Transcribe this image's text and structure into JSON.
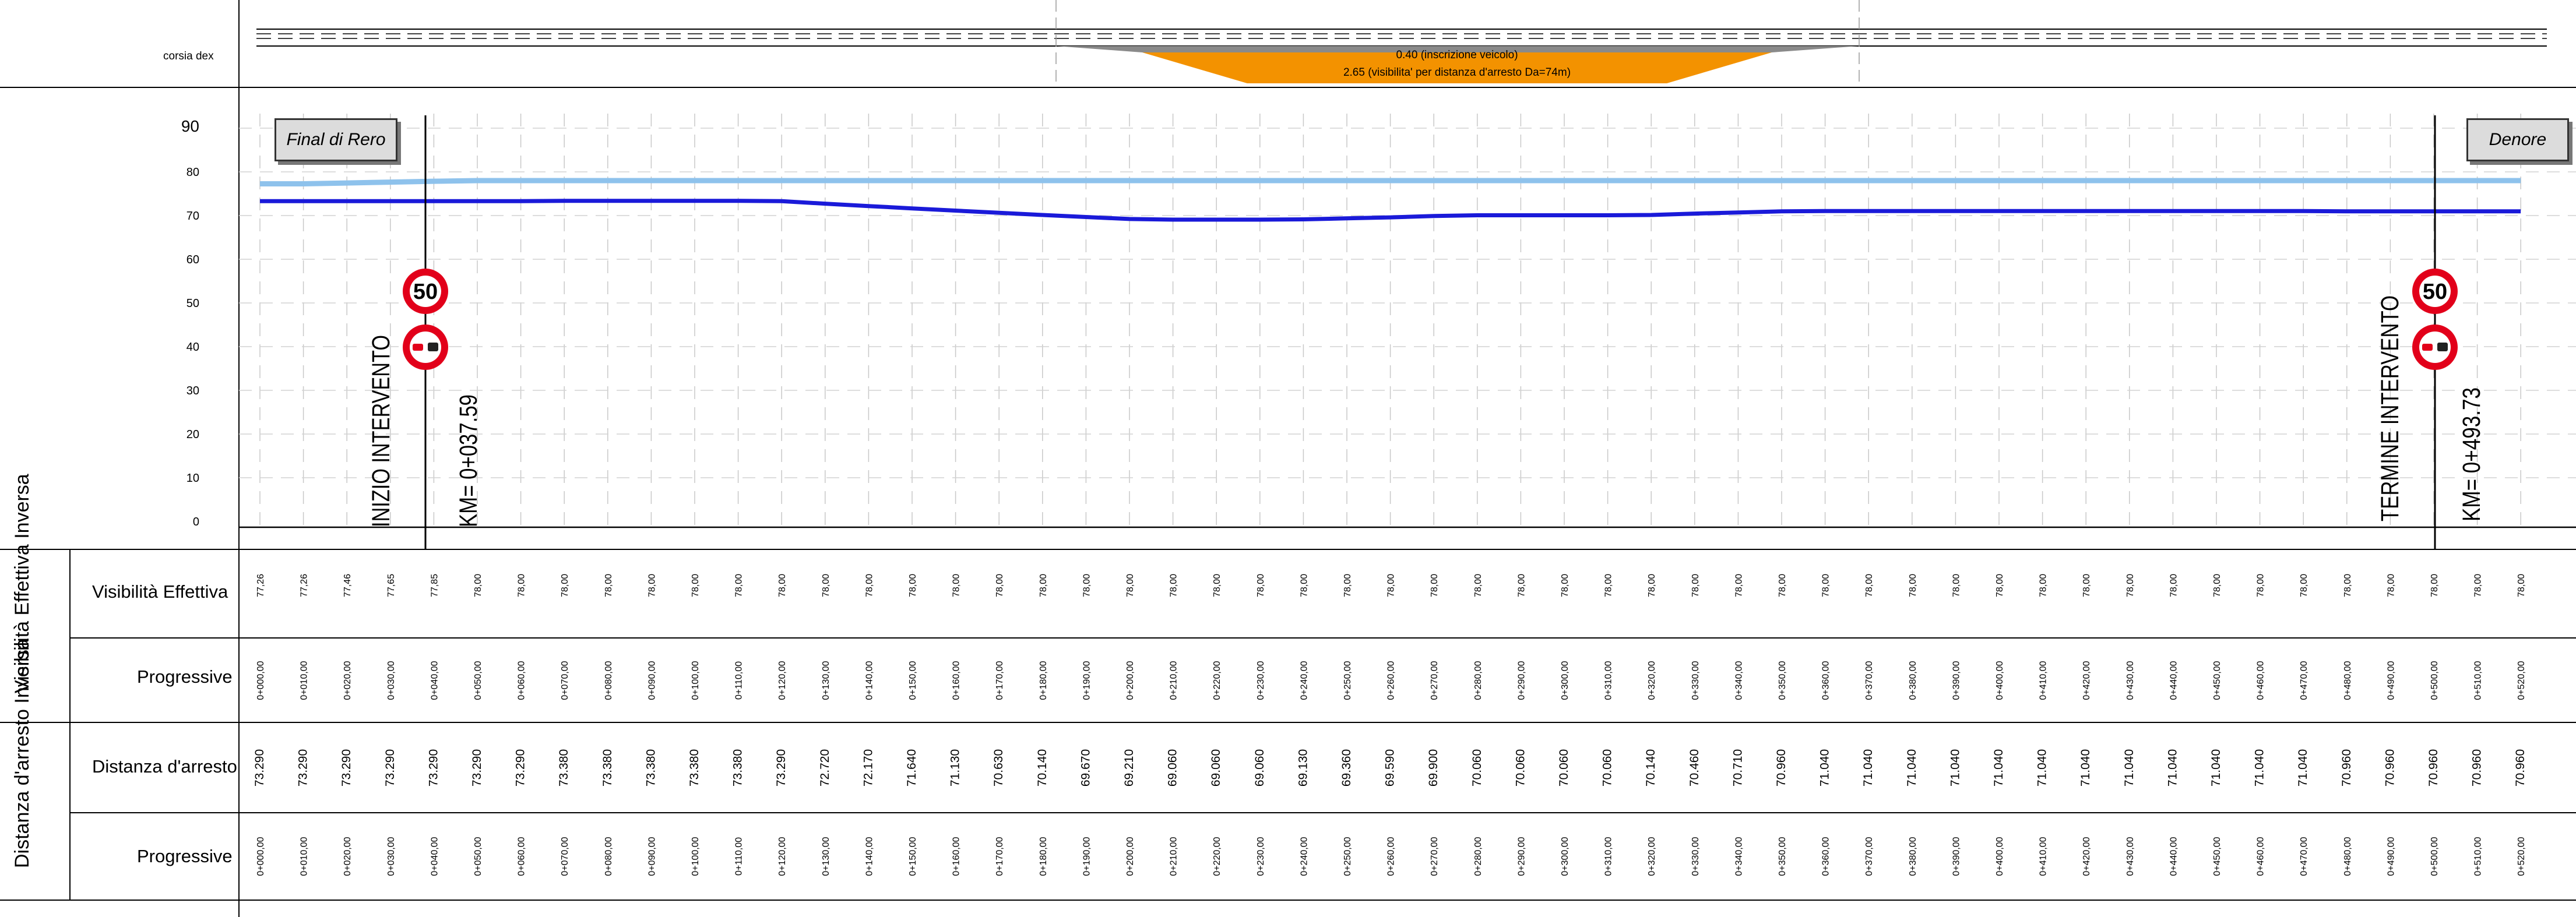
{
  "header": {
    "lane_label": "corsia dex",
    "annot_top": "0.40 (inscrizione veicolo)",
    "annot_bottom": "2.65 (visibilita' per distanza d'arresto Da=74m)"
  },
  "chart": {
    "left_box": "Final di Rero",
    "right_box": "Denore",
    "start_label": "INIZIO INTERVENTO",
    "start_km": "KM= 0+037.59",
    "end_label": "TERMINE INTERVENTO",
    "end_km": "KM= 0+493.73",
    "sign_speed": "50",
    "y_ticks": [
      "0",
      "10",
      "20",
      "30",
      "40",
      "50",
      "60",
      "70",
      "80",
      "90"
    ]
  },
  "colors": {
    "visibility_line": "#1a1ad9",
    "stopping_line": "#8ec2ec",
    "orange_band": "#f39200",
    "grey_band": "#8a8a8a",
    "sign_red": "#e2001a"
  },
  "table": {
    "group1_label": "Visibilità Effettiva Inversa",
    "group2_label": "Distanza d'arresto Inversa",
    "row_vis": "Visibilità Effettiva",
    "row_prog1": "Progressive",
    "row_dist": "Distanza d'arresto",
    "row_prog2": "Progressive"
  },
  "chart_data": {
    "type": "line",
    "title": "",
    "ylim": [
      0,
      90
    ],
    "x_progressive": [
      "0+000,00",
      "0+010,00",
      "0+020,00",
      "0+030,00",
      "0+040,00",
      "0+050,00",
      "0+060,00",
      "0+070,00",
      "0+080,00",
      "0+090,00",
      "0+100,00",
      "0+110,00",
      "0+120,00",
      "0+130,00",
      "0+140,00",
      "0+150,00",
      "0+160,00",
      "0+170,00",
      "0+180,00",
      "0+190,00",
      "0+200,00",
      "0+210,00",
      "0+220,00",
      "0+230,00",
      "0+240,00",
      "0+250,00",
      "0+260,00",
      "0+270,00",
      "0+280,00",
      "0+290,00",
      "0+300,00",
      "0+310,00",
      "0+320,00",
      "0+330,00",
      "0+340,00",
      "0+350,00",
      "0+360,00",
      "0+370,00",
      "0+380,00",
      "0+390,00",
      "0+400,00",
      "0+410,00",
      "0+420,00",
      "0+430,00",
      "0+440,00",
      "0+450,00",
      "0+460,00",
      "0+470,00",
      "0+480,00",
      "0+490,00",
      "0+500,00",
      "0+510,00",
      "0+520,00"
    ],
    "visibilita_effettiva": [
      "77,26",
      "77,26",
      "77,46",
      "77,65",
      "77,85",
      "78,00",
      "78,00",
      "78,00",
      "78,00",
      "78,00",
      "78,00",
      "78,00",
      "78,00",
      "78,00",
      "78,00",
      "78,00",
      "78,00",
      "78,00",
      "78,00",
      "78,00",
      "78,00",
      "78,00",
      "78,00",
      "78,00",
      "78,00",
      "78,00",
      "78,00",
      "78,00",
      "78,00",
      "78,00",
      "78,00",
      "78,00",
      "78,00",
      "78,00",
      "78,00",
      "78,00",
      "78,00",
      "78,00",
      "78,00",
      "78,00",
      "78,00",
      "78,00",
      "78,00",
      "78,00",
      "78,00",
      "78,00",
      "78,00",
      "78,00",
      "78,00",
      "78,00",
      "78,00",
      "78,00",
      "78,00"
    ],
    "distanza_arresto": [
      "73.290",
      "73.290",
      "73.290",
      "73.290",
      "73.290",
      "73.290",
      "73.290",
      "73.380",
      "73.380",
      "73.380",
      "73.380",
      "73.380",
      "73.290",
      "72.720",
      "72.170",
      "71.640",
      "71.130",
      "70.630",
      "70.140",
      "69.670",
      "69.210",
      "69.060",
      "69.060",
      "69.060",
      "69.130",
      "69.360",
      "69.590",
      "69.900",
      "70.060",
      "70.060",
      "70.060",
      "70.060",
      "70.140",
      "70.460",
      "70.710",
      "70.960",
      "71.040",
      "71.040",
      "71.040",
      "71.040",
      "71.040",
      "71.040",
      "71.040",
      "71.040",
      "71.040",
      "71.040",
      "71.040",
      "71.040",
      "70.960",
      "70.960",
      "70.960",
      "70.960",
      "70.960"
    ],
    "series": [
      {
        "name": "Visibilità Effettiva",
        "values": [
          77.26,
          77.26,
          77.46,
          77.65,
          77.85,
          78,
          78,
          78,
          78,
          78,
          78,
          78,
          78,
          78,
          78,
          78,
          78,
          78,
          78,
          78,
          78,
          78,
          78,
          78,
          78,
          78,
          78,
          78,
          78,
          78,
          78,
          78,
          78,
          78,
          78,
          78,
          78,
          78,
          78,
          78,
          78,
          78,
          78,
          78,
          78,
          78,
          78,
          78,
          78,
          78,
          78,
          78,
          78
        ]
      },
      {
        "name": "Distanza d'arresto",
        "values": [
          73.29,
          73.29,
          73.29,
          73.29,
          73.29,
          73.29,
          73.29,
          73.38,
          73.38,
          73.38,
          73.38,
          73.38,
          73.29,
          72.72,
          72.17,
          71.64,
          71.13,
          70.63,
          70.14,
          69.67,
          69.21,
          69.06,
          69.06,
          69.06,
          69.13,
          69.36,
          69.59,
          69.9,
          70.06,
          70.06,
          70.06,
          70.06,
          70.14,
          70.46,
          70.71,
          70.96,
          71.04,
          71.04,
          71.04,
          71.04,
          71.04,
          71.04,
          71.04,
          71.04,
          71.04,
          71.04,
          71.04,
          71.04,
          70.96,
          70.96,
          70.96,
          70.96,
          70.96
        ]
      }
    ]
  }
}
